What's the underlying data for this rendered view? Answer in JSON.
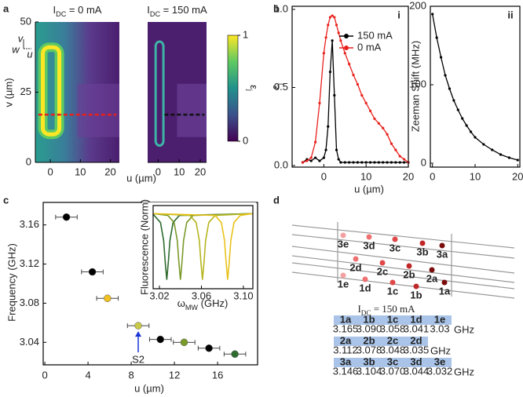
{
  "chart_data": [
    {
      "type": "image",
      "panel": "a",
      "title": [
        "I",
        "DC",
        " = 0 mA"
      ],
      "xlabel": "u (µm)",
      "ylabel": "v (µm)",
      "xlim": [
        -5,
        23
      ],
      "ylim": [
        0,
        50
      ],
      "xticks": [
        0,
        10,
        20
      ],
      "yticks": [
        0,
        25,
        50
      ],
      "axes_icon": [
        "v",
        "w",
        "u"
      ],
      "colorbar": {
        "label": [
          "ε",
          "j"
        ],
        "lim": [
          0,
          1
        ],
        "ticks": [
          0,
          1
        ]
      }
    },
    {
      "type": "image",
      "title": [
        "I",
        "DC",
        " = 150 mA"
      ],
      "xlim": [
        -5,
        23
      ],
      "ylim": [
        0,
        50
      ],
      "xticks": [
        0,
        10,
        20
      ]
    },
    {
      "type": "line",
      "panel": "b",
      "subtitle": "i",
      "ylabel": [
        "ε",
        "j"
      ],
      "xlim": [
        -7.5,
        20
      ],
      "ylim": [
        -0.01,
        1.02
      ],
      "xticks": [
        0,
        10,
        20
      ],
      "yticks": [
        {
          "value": 0,
          "label": "0.0"
        },
        {
          "value": 0.5,
          "label": "0.5"
        },
        {
          "value": 1,
          "label": "1.0"
        }
      ],
      "legend": "upper right",
      "x": [
        -5,
        -4,
        -3,
        -2,
        -1,
        0,
        0.5,
        1,
        1.5,
        2,
        2.5,
        3,
        3.5,
        4,
        5,
        6,
        7,
        8,
        9,
        10,
        11,
        12,
        13,
        14,
        15,
        16,
        17,
        18,
        19,
        20
      ],
      "series": [
        {
          "name": "150 mA",
          "color": "#000000",
          "values": [
            0.02,
            0.04,
            0.03,
            0.05,
            0.03,
            0.05,
            0.1,
            0.25,
            0.6,
            0.8,
            0.45,
            0.1,
            0.04,
            0.02,
            0.02,
            0.02,
            0.02,
            0.02,
            0.02,
            0.02,
            0.02,
            0.02,
            0.02,
            0.02,
            0.02,
            0.02,
            0.02,
            0.02,
            0.02,
            0.02
          ]
        },
        {
          "name": "0 mA",
          "color": "#e8201c",
          "values": [
            0.02,
            0.03,
            0.05,
            0.15,
            0.4,
            0.72,
            0.82,
            0.9,
            0.95,
            0.96,
            0.95,
            0.9,
            0.85,
            0.8,
            0.72,
            0.65,
            0.58,
            0.52,
            0.45,
            0.4,
            0.35,
            0.3,
            0.27,
            0.24,
            0.2,
            0.14,
            0.1,
            0.06,
            0.04,
            0.02
          ]
        }
      ]
    },
    {
      "type": "line",
      "subtitle": "ii",
      "xlabel": "u (µm)",
      "ylabel": "Zeeman Shift (MHz)",
      "xlim": [
        -0.5,
        20.5
      ],
      "ylim": [
        -5,
        200
      ],
      "xticks": [
        0,
        10,
        20
      ],
      "yticks": [
        0,
        100,
        200
      ],
      "x": [
        0,
        1,
        2,
        3,
        4,
        5,
        6,
        7,
        8,
        9,
        10,
        12,
        14,
        16,
        18,
        20
      ],
      "series": [
        {
          "color": "#000000",
          "values": [
            190,
            160,
            135,
            112,
            95,
            80,
            68,
            57,
            48,
            40,
            33,
            24,
            17,
            11,
            7,
            4
          ]
        }
      ]
    },
    {
      "type": "scatter",
      "panel": "c",
      "xlabel": "u (µm)",
      "ylabel": "Frequency (GHz)",
      "xlim": [
        -0.15,
        19.7
      ],
      "ylim": [
        3.017,
        3.183
      ],
      "xticks": [
        0,
        4,
        8,
        12,
        16
      ],
      "yticks": [
        3.04,
        3.08,
        3.12,
        3.16
      ],
      "x": [
        2,
        4.4,
        5.8,
        8.65,
        10.7,
        12.9,
        15.2,
        17.6
      ],
      "values": [
        3.168,
        3.112,
        3.085,
        3.057,
        3.043,
        3.04,
        3.034,
        3.028
      ],
      "xerr": [
        1,
        1,
        1,
        1,
        1,
        1,
        1,
        1
      ],
      "colors": [
        "#000000",
        "#000000",
        "#f0c020",
        "#c8c84a",
        "#000000",
        "#7a9a2a",
        "#000000",
        "#2e6b2e"
      ],
      "annotation": {
        "text": "S2",
        "color": "#1a35d4"
      }
    },
    {
      "type": "line",
      "xlabel": [
        "ω",
        "MW",
        " (GHz)"
      ],
      "ylabel": "Fluorescence (Norm)",
      "xlim": [
        3.014,
        3.109
      ],
      "ylim": [
        0.15,
        1.08
      ],
      "xticks": [
        3.02,
        3.06,
        {
          "value": 3.1,
          "label": "3.10"
        }
      ],
      "series": [
        {
          "color": "#2e6b2e",
          "x": [
            3.014,
            3.015,
            3.021,
            3.024,
            3.0255,
            3.027,
            3.0285,
            3.03,
            3.033,
            3.039,
            3.109
          ],
          "values": [
            0.99,
            0.97,
            0.89,
            0.69,
            0.45,
            0.25,
            0.45,
            0.69,
            0.89,
            0.97,
            0.99
          ]
        },
        {
          "color": "#7a9a2a",
          "x": [
            3.014,
            3.028,
            3.034,
            3.037,
            3.0385,
            3.04,
            3.0415,
            3.043,
            3.046,
            3.052,
            3.109
          ],
          "values": [
            0.99,
            0.97,
            0.89,
            0.69,
            0.45,
            0.25,
            0.45,
            0.69,
            0.89,
            0.97,
            0.99
          ]
        },
        {
          "color": "#b5b520",
          "x": [
            3.014,
            3.049,
            3.055,
            3.058,
            3.0595,
            3.061,
            3.0625,
            3.064,
            3.067,
            3.073,
            3.109
          ],
          "values": [
            0.99,
            0.97,
            0.89,
            0.69,
            0.45,
            0.25,
            0.45,
            0.69,
            0.89,
            0.97,
            0.99
          ]
        },
        {
          "color": "#e8c21a",
          "x": [
            3.014,
            3.073,
            3.079,
            3.082,
            3.0835,
            3.085,
            3.0865,
            3.088,
            3.091,
            3.097,
            3.109
          ],
          "values": [
            0.99,
            0.97,
            0.89,
            0.69,
            0.45,
            0.25,
            0.45,
            0.69,
            0.89,
            0.97,
            0.99
          ]
        }
      ]
    }
  ],
  "panel_d": {
    "panel": "d",
    "sites": [
      {
        "label": "3e",
        "color": "#f4a0a0"
      },
      {
        "label": "3d",
        "color": "#ee7070"
      },
      {
        "label": "3c",
        "color": "#e04848"
      },
      {
        "label": "3b",
        "color": "#c02828"
      },
      {
        "label": "3a",
        "color": "#7a0c0c"
      },
      {
        "label": "2d",
        "color": "#ee7070"
      },
      {
        "label": "2c",
        "color": "#e04848"
      },
      {
        "label": "2b",
        "color": "#c02828"
      },
      {
        "label": "2a",
        "color": "#7a0c0c"
      },
      {
        "label": "1e",
        "color": "#f4a0a0"
      },
      {
        "label": "1d",
        "color": "#ee7070"
      },
      {
        "label": "1c",
        "color": "#e04848"
      },
      {
        "label": "1b",
        "color": "#c02828"
      },
      {
        "label": "1a",
        "color": "#7a0c0c"
      }
    ],
    "table": {
      "title": [
        "I",
        "DC",
        " = 150 mA"
      ],
      "rows": [
        {
          "header": [
            "1a",
            "1b",
            "1c",
            "1d",
            "1e"
          ],
          "values": [
            "3.165",
            "3.090",
            "3.058",
            "3.041",
            "3.03"
          ],
          "unit": "GHz"
        },
        {
          "header": [
            "2a",
            "2b",
            "2c",
            "2d"
          ],
          "values": [
            "3.112",
            "3.078",
            "3.048",
            "3.035"
          ],
          "unit": "GHz"
        },
        {
          "header": [
            "3a",
            "3b",
            "3c",
            "3d",
            "3e"
          ],
          "values": [
            "3.146",
            "3.104",
            "3.070",
            "3.044",
            "3.032"
          ],
          "unit": "GHz"
        }
      ]
    }
  }
}
